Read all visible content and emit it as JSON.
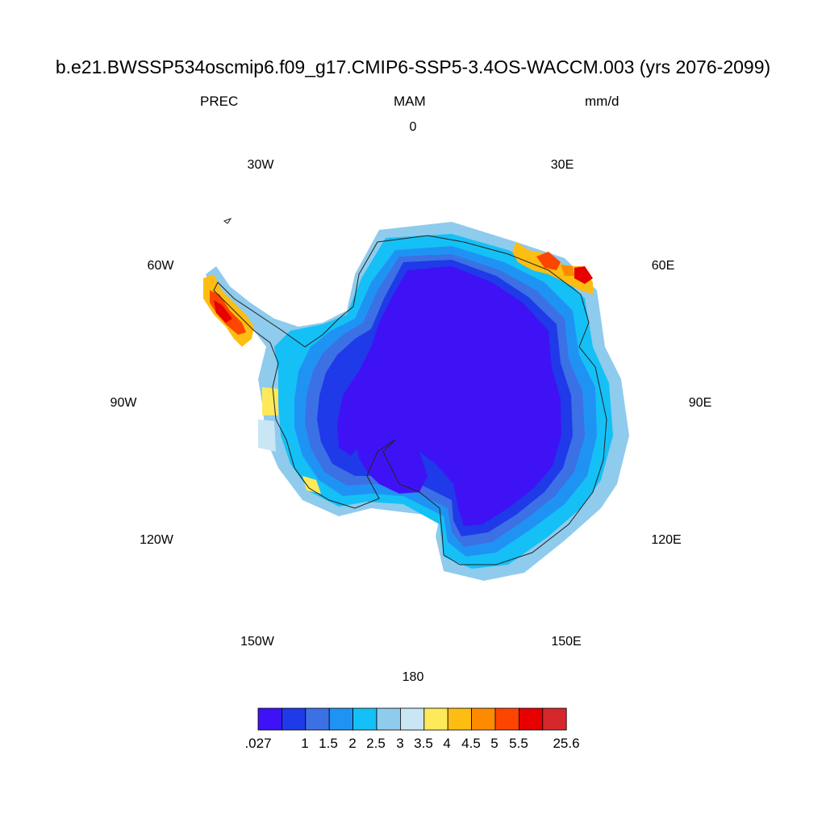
{
  "title": "b.e21.BWSSP534oscmip6.f09_g17.CMIP6-SSP5-3.4OS-WACCM.003 (yrs 2076-2099)",
  "variable": "PREC",
  "season": "MAM",
  "units": "mm/d",
  "longitude_labels": [
    "0",
    "30E",
    "60E",
    "90E",
    "120E",
    "150E",
    "180",
    "150W",
    "120W",
    "90W",
    "60W",
    "30W"
  ],
  "map_data": {
    "region": "Antarctica",
    "projection": "South polar stereographic",
    "color_scale": {
      "colors": [
        "#3f12f5",
        "#1f3ae8",
        "#3c70e5",
        "#1f93f4",
        "#15c0f6",
        "#8fcbec",
        "#c9e6f5",
        "#fde95a",
        "#fdbd12",
        "#fd8b00",
        "#fd4500",
        "#e60000",
        "#d5282c"
      ],
      "labels": [
        ".027",
        "1",
        "1.5",
        "2",
        "2.5",
        "3",
        "3.5",
        "4",
        "4.5",
        "5",
        "5.5",
        "25.6"
      ]
    }
  }
}
